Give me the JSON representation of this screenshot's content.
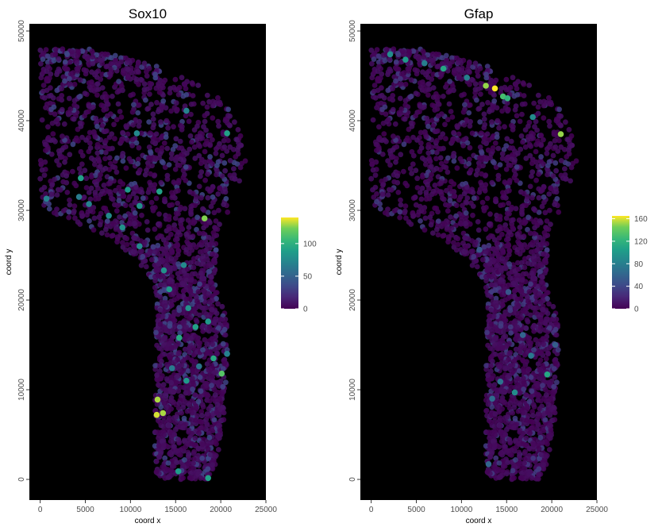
{
  "chart_data": [
    {
      "type": "scatter",
      "title": "Sox10",
      "xlabel": "coord x",
      "ylabel": "coord y",
      "xlim": [
        -1200,
        25000
      ],
      "ylim": [
        -2300,
        50800
      ],
      "x_ticks": [
        0,
        5000,
        10000,
        15000,
        20000,
        25000
      ],
      "y_ticks": [
        0,
        10000,
        20000,
        30000,
        40000,
        50000
      ],
      "background": "#000000",
      "grid": false,
      "colorbar": {
        "min": 0,
        "max": 140,
        "ticks": [
          0,
          50,
          100
        ],
        "placement": "right"
      },
      "colormap": "viridis",
      "highlights": [
        {
          "x": 18200,
          "y": 29100,
          "v": 125
        },
        {
          "x": 20100,
          "y": 11800,
          "v": 115
        },
        {
          "x": 13000,
          "y": 8900,
          "v": 130
        },
        {
          "x": 12900,
          "y": 7200,
          "v": 135
        },
        {
          "x": 13600,
          "y": 7400,
          "v": 130
        },
        {
          "x": 19200,
          "y": 13500,
          "v": 95
        },
        {
          "x": 16200,
          "y": 11000,
          "v": 85
        },
        {
          "x": 15400,
          "y": 15800,
          "v": 95
        },
        {
          "x": 17200,
          "y": 17000,
          "v": 90
        },
        {
          "x": 18600,
          "y": 17600,
          "v": 85
        },
        {
          "x": 16400,
          "y": 19100,
          "v": 80
        },
        {
          "x": 14300,
          "y": 21200,
          "v": 85
        },
        {
          "x": 13700,
          "y": 23300,
          "v": 80
        },
        {
          "x": 11000,
          "y": 26000,
          "v": 75
        },
        {
          "x": 9100,
          "y": 28100,
          "v": 80
        },
        {
          "x": 7600,
          "y": 29400,
          "v": 75
        },
        {
          "x": 5400,
          "y": 30700,
          "v": 70
        },
        {
          "x": 4300,
          "y": 31500,
          "v": 65
        },
        {
          "x": 700,
          "y": 31300,
          "v": 70
        },
        {
          "x": 4500,
          "y": 33600,
          "v": 90
        },
        {
          "x": 9700,
          "y": 32300,
          "v": 85
        },
        {
          "x": 13200,
          "y": 32100,
          "v": 90
        },
        {
          "x": 20700,
          "y": 38600,
          "v": 90
        },
        {
          "x": 16200,
          "y": 41100,
          "v": 70
        },
        {
          "x": 10700,
          "y": 38600,
          "v": 75
        },
        {
          "x": 11000,
          "y": 30500,
          "v": 80
        },
        {
          "x": 15900,
          "y": 23900,
          "v": 75
        },
        {
          "x": 15300,
          "y": 900,
          "v": 85
        },
        {
          "x": 18600,
          "y": 150,
          "v": 90
        },
        {
          "x": 20700,
          "y": 14000,
          "v": 70
        },
        {
          "x": 14600,
          "y": 12400,
          "v": 65
        },
        {
          "x": 17600,
          "y": 12600,
          "v": 60
        }
      ]
    },
    {
      "type": "scatter",
      "title": "Gfap",
      "xlabel": "coord x",
      "ylabel": "coord y",
      "xlim": [
        -1200,
        25000
      ],
      "ylim": [
        -2300,
        50800
      ],
      "x_ticks": [
        0,
        5000,
        10000,
        15000,
        20000,
        25000
      ],
      "y_ticks": [
        0,
        10000,
        20000,
        30000,
        40000,
        50000
      ],
      "background": "#000000",
      "grid": false,
      "colorbar": {
        "min": 0,
        "max": 165,
        "ticks": [
          0,
          40,
          80,
          120,
          160
        ],
        "placement": "right"
      },
      "colormap": "viridis",
      "highlights": [
        {
          "x": 13700,
          "y": 43600,
          "v": 165
        },
        {
          "x": 12700,
          "y": 43900,
          "v": 150
        },
        {
          "x": 21000,
          "y": 38500,
          "v": 150
        },
        {
          "x": 14600,
          "y": 42700,
          "v": 130
        },
        {
          "x": 15100,
          "y": 42500,
          "v": 120
        },
        {
          "x": 8000,
          "y": 45800,
          "v": 110
        },
        {
          "x": 3800,
          "y": 46800,
          "v": 100
        },
        {
          "x": 2100,
          "y": 47400,
          "v": 90
        },
        {
          "x": 5900,
          "y": 46400,
          "v": 80
        },
        {
          "x": 10600,
          "y": 44800,
          "v": 80
        },
        {
          "x": 17900,
          "y": 40400,
          "v": 90
        },
        {
          "x": 19500,
          "y": 11700,
          "v": 110
        },
        {
          "x": 17700,
          "y": 13800,
          "v": 75
        },
        {
          "x": 15900,
          "y": 9700,
          "v": 90
        },
        {
          "x": 14300,
          "y": 10900,
          "v": 70
        },
        {
          "x": 13400,
          "y": 9000,
          "v": 65
        },
        {
          "x": 16800,
          "y": 16100,
          "v": 60
        },
        {
          "x": 20400,
          "y": 15000,
          "v": 55
        },
        {
          "x": 13000,
          "y": 1700,
          "v": 60
        },
        {
          "x": 15200,
          "y": 20900,
          "v": 50
        },
        {
          "x": 12000,
          "y": 25600,
          "v": 50
        }
      ]
    }
  ]
}
